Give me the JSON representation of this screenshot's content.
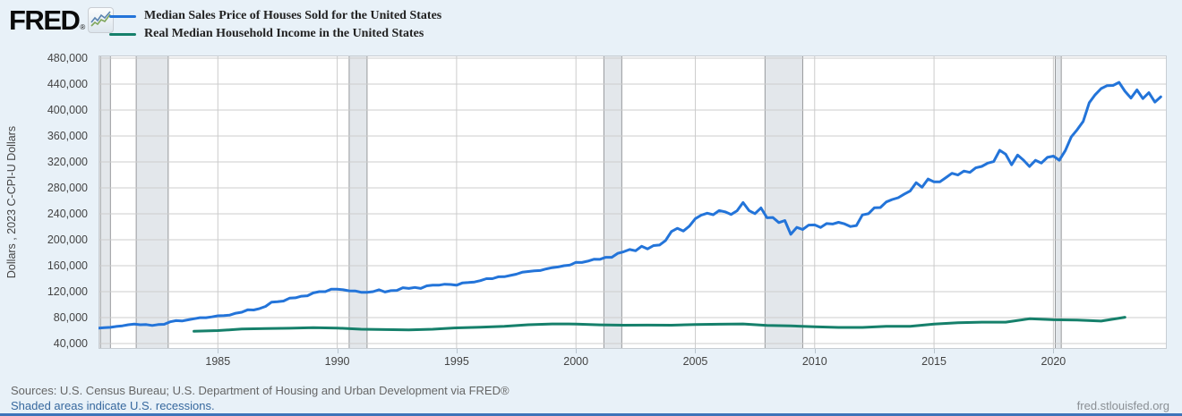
{
  "header": {
    "logo_text": "FRED",
    "logo_registered": "®"
  },
  "footer": {
    "sources": "Sources: U.S. Census Bureau; U.S. Department of Housing and Urban Development via FRED®",
    "recessions_note": "Shaded areas indicate U.S. recessions.",
    "site": "fred.stlouisfed.org"
  },
  "colors": {
    "page_background": "#E8F1F8",
    "plot_background": "#FFFFFF",
    "gridline": "#CCCCCC",
    "plot_border": "#C7CDD3",
    "recession_band": "#E3E7EB",
    "recession_band_edge": "#97999C",
    "series_blue": "#2374D9",
    "series_green": "#16806B"
  },
  "chart_data": {
    "type": "line",
    "title": "",
    "xlabel": "",
    "ylabel": "Dollars , 2023 C-CPI-U Dollars",
    "grid": true,
    "legend_position": "top-left",
    "x_range": [
      1980,
      2024.75
    ],
    "ylim": [
      40000,
      480000
    ],
    "x_ticks": [
      1985,
      1990,
      1995,
      2000,
      2005,
      2010,
      2015,
      2020
    ],
    "y_ticks": [
      40000,
      80000,
      120000,
      160000,
      200000,
      240000,
      280000,
      320000,
      360000,
      400000,
      440000,
      480000
    ],
    "recession_shading_note": "U.S. recessions",
    "recession_spans": [
      [
        1980.08,
        1980.5
      ],
      [
        1981.58,
        1982.92
      ],
      [
        1990.5,
        1991.25
      ],
      [
        2001.17,
        2001.92
      ],
      [
        2007.92,
        2009.5
      ],
      [
        2020.08,
        2020.33
      ]
    ],
    "series": [
      {
        "name": "Median Sales Price of Houses Sold for the United States",
        "color": "#2374D9",
        "frequency": "quarterly",
        "x_start": 1980,
        "x_step": 0.25,
        "values": [
          63700,
          64600,
          64900,
          66400,
          67300,
          68900,
          69900,
          68900,
          69300,
          67800,
          69300,
          69700,
          73500,
          75300,
          74800,
          76600,
          78200,
          79900,
          79900,
          81100,
          82800,
          83200,
          83900,
          86800,
          88300,
          92000,
          91700,
          94000,
          97300,
          103900,
          104500,
          105500,
          110000,
          110500,
          113000,
          113600,
          118000,
          120000,
          120000,
          123900,
          123900,
          122900,
          121300,
          121100,
          119000,
          119000,
          120000,
          122900,
          119500,
          121500,
          122000,
          126000,
          125000,
          126500,
          125000,
          129000,
          130000,
          130000,
          131500,
          131000,
          130000,
          133500,
          134000,
          134900,
          137000,
          140000,
          140000,
          142900,
          143000,
          145000,
          146900,
          150000,
          151000,
          152000,
          152500,
          155000,
          157000,
          158000,
          160000,
          161000,
          165300,
          165000,
          167000,
          170000,
          169800,
          172900,
          172900,
          179000,
          181500,
          185000,
          183000,
          190000,
          186000,
          191000,
          191900,
          198800,
          212700,
          217600,
          213500,
          221000,
          232500,
          237900,
          240900,
          238600,
          244900,
          243100,
          239000,
          244700,
          257400,
          245000,
          240300,
          249100,
          233900,
          234300,
          226500,
          229600,
          208400,
          219000,
          215900,
          222600,
          222900,
          219000,
          225000,
          224300,
          226900,
          224500,
          220400,
          222000,
          238400,
          240200,
          249300,
          249600,
          258400,
          262100,
          264800,
          270200,
          275200,
          288000,
          281000,
          293600,
          289200,
          289400,
          295800,
          302500,
          299800,
          306000,
          303800,
          310900,
          313100,
          318200,
          320500,
          337900,
          331800,
          315600,
          330600,
          322800,
          313000,
          322500,
          318400,
          327100,
          329000,
          322600,
          337500,
          358700,
          369800,
          382600,
          411200,
          423600,
          433100,
          437700,
          438000,
          442600,
          429000,
          418500,
          431000,
          417700,
          426800,
          412300,
          420400
        ]
      },
      {
        "name": "Real Median Household Income in the United States",
        "color": "#16806B",
        "frequency": "annual",
        "x_start": 1984,
        "x_step": 1,
        "values": [
          58930,
          60050,
          62280,
          63060,
          63530,
          64610,
          63830,
          62120,
          61450,
          61150,
          62050,
          64080,
          65040,
          66430,
          69030,
          70210,
          70020,
          68870,
          68310,
          68350,
          68250,
          69310,
          69820,
          70210,
          67880,
          67340,
          65850,
          64820,
          64790,
          66490,
          66600,
          70080,
          71990,
          72920,
          73030,
          78250,
          76660,
          76330,
          74580,
          80610
        ]
      }
    ]
  }
}
